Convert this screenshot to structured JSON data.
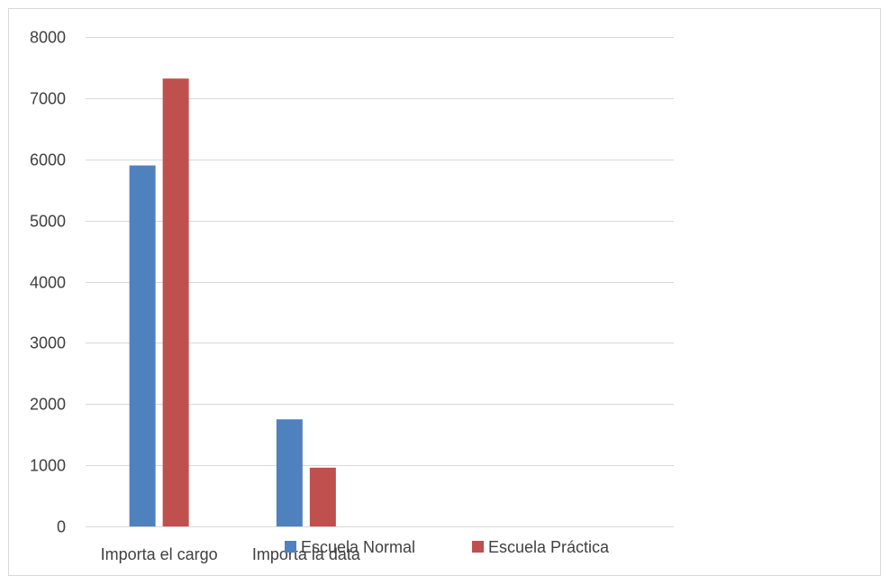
{
  "chart_data": {
    "type": "bar",
    "title": "",
    "xlabel": "",
    "ylabel": "",
    "categories": [
      "Importa el cargo",
      "Importa la data",
      "",
      ""
    ],
    "series": [
      {
        "name": "Escuela Normal",
        "values": [
          5900,
          1750,
          null,
          null
        ],
        "color": "#4F81BD"
      },
      {
        "name": "Escuela Práctica",
        "values": [
          7320,
          960,
          null,
          null
        ],
        "color": "#C0504D"
      }
    ],
    "ylim": [
      0,
      8000
    ],
    "yticks": [
      0,
      1000,
      2000,
      3000,
      4000,
      5000,
      6000,
      7000,
      8000
    ],
    "grid": true,
    "legend_position": "bottom"
  }
}
